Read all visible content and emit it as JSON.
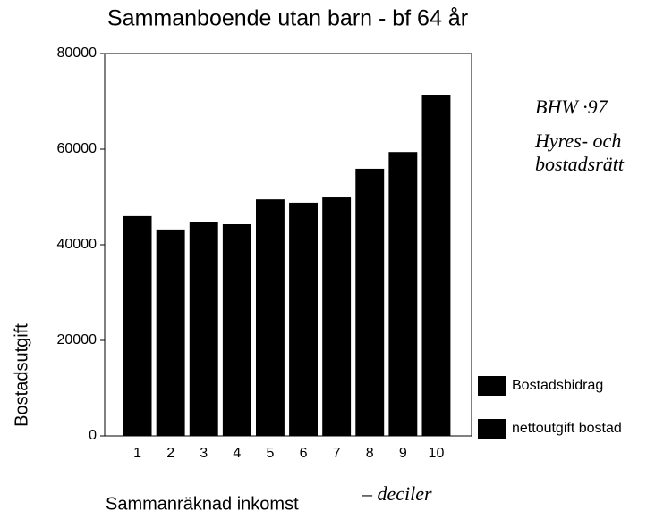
{
  "chart_data": {
    "type": "bar",
    "title": "Sammanboende utan barn - bf 64 år",
    "y_label": "Bostadsutgift",
    "x_label": "Sammanräknad inkomst",
    "categories": [
      "1",
      "2",
      "3",
      "4",
      "5",
      "6",
      "7",
      "8",
      "9",
      "10"
    ],
    "values": [
      46000,
      43200,
      44700,
      44300,
      49500,
      48800,
      49900,
      55900,
      59400,
      71400
    ],
    "color": "#000000",
    "legend": [
      {
        "name": "Bostadsbidrag",
        "color": "#000000"
      },
      {
        "name": "nettoutgift bostad",
        "color": "#000000"
      }
    ],
    "ylim": [
      0,
      80000
    ],
    "yticks": [
      0,
      20000,
      40000,
      60000,
      80000
    ],
    "annotations": [
      "BHW ·97",
      "Hyres- och",
      "bostadsrätt",
      "– deciler"
    ]
  }
}
